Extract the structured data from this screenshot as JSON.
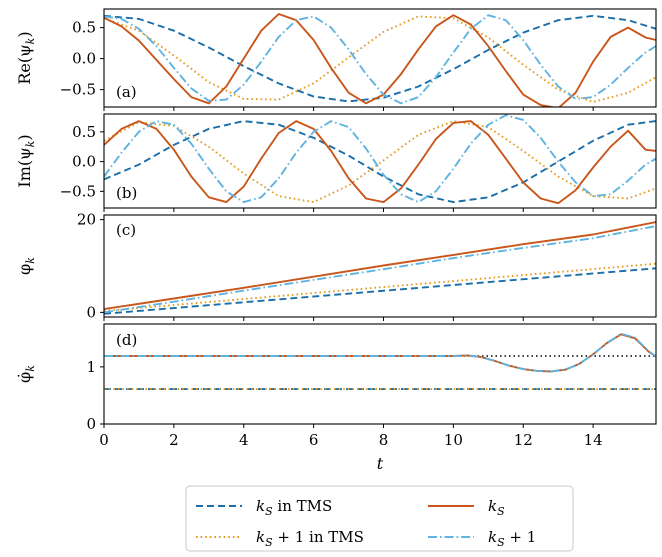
{
  "chart_data": [
    {
      "panel_label": "(a)",
      "type": "line",
      "ylabel": "Re(ψ_k)",
      "xlim": [
        0,
        15.8
      ],
      "ylim": [
        -0.78,
        0.8
      ],
      "yticks": [
        0.5,
        0.0,
        -0.5
      ],
      "ytick_labels": [
        "0.5",
        "0.0",
        "−0.5"
      ],
      "series": [
        {
          "key": "kS_tms",
          "x": [
            0,
            1,
            2,
            3,
            4,
            5,
            6,
            7,
            8,
            9,
            10,
            11,
            12,
            13,
            14,
            15,
            15.8
          ],
          "y": [
            0.69,
            0.64,
            0.45,
            0.18,
            -0.12,
            -0.4,
            -0.61,
            -0.69,
            -0.63,
            -0.45,
            -0.17,
            0.14,
            0.42,
            0.62,
            0.69,
            0.62,
            0.48
          ]
        },
        {
          "key": "kS1_tms",
          "x": [
            0,
            1,
            2,
            3,
            4,
            5,
            6,
            7,
            8,
            9,
            10,
            11,
            12,
            13,
            14,
            15,
            15.8
          ],
          "y": [
            0.65,
            0.45,
            0.05,
            -0.38,
            -0.65,
            -0.66,
            -0.4,
            0.02,
            0.43,
            0.68,
            0.65,
            0.34,
            -0.1,
            -0.5,
            -0.7,
            -0.55,
            -0.3
          ]
        },
        {
          "key": "kS",
          "x": [
            0,
            0.5,
            1,
            1.5,
            2,
            2.5,
            3,
            3.5,
            4,
            4.5,
            5,
            5.5,
            6,
            6.5,
            7,
            7.5,
            8,
            8.5,
            9,
            9.5,
            10,
            10.5,
            11,
            11.5,
            12,
            12.5,
            13,
            13.5,
            14,
            14.5,
            15,
            15.5,
            15.8
          ],
          "y": [
            0.66,
            0.52,
            0.29,
            -0.02,
            -0.33,
            -0.62,
            -0.72,
            -0.45,
            0.0,
            0.45,
            0.72,
            0.62,
            0.3,
            -0.15,
            -0.55,
            -0.72,
            -0.58,
            -0.25,
            0.15,
            0.52,
            0.7,
            0.55,
            0.2,
            -0.2,
            -0.58,
            -0.75,
            -0.8,
            -0.55,
            -0.05,
            0.35,
            0.5,
            0.34,
            0.3
          ]
        },
        {
          "key": "kS1",
          "x": [
            0,
            0.5,
            1,
            1.5,
            2,
            2.5,
            3,
            3.5,
            4,
            4.5,
            5,
            5.5,
            6,
            6.5,
            7,
            7.5,
            8,
            8.5,
            9,
            9.5,
            10,
            10.5,
            11,
            11.5,
            12,
            12.5,
            13,
            13.5,
            14,
            14.5,
            15,
            15.5,
            15.8
          ],
          "y": [
            0.68,
            0.64,
            0.48,
            0.2,
            -0.15,
            -0.48,
            -0.68,
            -0.66,
            -0.42,
            -0.05,
            0.35,
            0.62,
            0.68,
            0.5,
            0.15,
            -0.25,
            -0.58,
            -0.72,
            -0.62,
            -0.3,
            0.1,
            0.48,
            0.7,
            0.62,
            0.3,
            -0.1,
            -0.45,
            -0.65,
            -0.62,
            -0.42,
            -0.15,
            0.1,
            0.2
          ]
        }
      ]
    },
    {
      "panel_label": "(b)",
      "type": "line",
      "ylabel": "Im(ψ_k)",
      "xlim": [
        0,
        15.8
      ],
      "ylim": [
        -0.78,
        0.8
      ],
      "yticks": [
        0.5,
        0.0,
        -0.5
      ],
      "ytick_labels": [
        "0.5",
        "0.0",
        "−0.5"
      ],
      "series": [
        {
          "key": "kS_tms",
          "x": [
            0,
            1,
            2,
            3,
            4,
            5,
            6,
            7,
            8,
            9,
            10,
            11,
            12,
            13,
            14,
            15,
            15.8
          ],
          "y": [
            -0.3,
            -0.05,
            0.28,
            0.55,
            0.68,
            0.62,
            0.4,
            0.1,
            -0.25,
            -0.55,
            -0.68,
            -0.6,
            -0.35,
            0.0,
            0.35,
            0.62,
            0.68
          ]
        },
        {
          "key": "kS1_tms",
          "x": [
            0,
            1,
            2,
            3,
            4,
            5,
            6,
            7,
            8,
            9,
            10,
            11,
            12,
            13,
            14,
            15,
            15.8
          ],
          "y": [
            0.35,
            0.66,
            0.6,
            0.25,
            -0.2,
            -0.58,
            -0.68,
            -0.4,
            0.02,
            0.45,
            0.68,
            0.58,
            0.18,
            -0.25,
            -0.58,
            -0.62,
            -0.45
          ]
        },
        {
          "key": "kS",
          "x": [
            0,
            0.5,
            1,
            1.5,
            2,
            2.5,
            3,
            3.5,
            4,
            4.5,
            5,
            5.5,
            6,
            6.5,
            7,
            7.5,
            8,
            8.5,
            9,
            9.5,
            10,
            10.5,
            11,
            11.5,
            12,
            12.5,
            13,
            13.5,
            14,
            14.5,
            15,
            15.5,
            15.8
          ],
          "y": [
            0.28,
            0.55,
            0.68,
            0.55,
            0.2,
            -0.25,
            -0.6,
            -0.68,
            -0.42,
            0.05,
            0.48,
            0.68,
            0.55,
            0.18,
            -0.28,
            -0.62,
            -0.68,
            -0.45,
            -0.05,
            0.38,
            0.65,
            0.68,
            0.45,
            0.05,
            -0.35,
            -0.62,
            -0.7,
            -0.48,
            -0.1,
            0.25,
            0.52,
            0.2,
            0.18
          ]
        },
        {
          "key": "kS1",
          "x": [
            0,
            0.5,
            1,
            1.5,
            2,
            2.5,
            3,
            3.5,
            4,
            4.5,
            5,
            5.5,
            6,
            6.5,
            7,
            7.5,
            8,
            8.5,
            9,
            9.5,
            10,
            10.5,
            11,
            11.5,
            12,
            12.5,
            13,
            13.5,
            14,
            14.5,
            15,
            15.5,
            15.8
          ],
          "y": [
            -0.25,
            0.15,
            0.5,
            0.68,
            0.62,
            0.3,
            -0.12,
            -0.5,
            -0.68,
            -0.6,
            -0.28,
            0.15,
            0.5,
            0.68,
            0.58,
            0.22,
            -0.22,
            -0.55,
            -0.68,
            -0.5,
            -0.12,
            0.3,
            0.62,
            0.78,
            0.7,
            0.4,
            0.0,
            -0.35,
            -0.58,
            -0.55,
            -0.32,
            -0.05,
            0.05
          ]
        }
      ]
    },
    {
      "panel_label": "(c)",
      "type": "line",
      "ylabel": "φ_k",
      "xlim": [
        0,
        15.8
      ],
      "ylim": [
        -1,
        21
      ],
      "yticks": [
        20,
        0
      ],
      "ytick_labels": [
        "20",
        "0"
      ],
      "series": [
        {
          "key": "kS_tms",
          "x": [
            0,
            15.8
          ],
          "y": [
            -0.3,
            9.5
          ]
        },
        {
          "key": "kS1_tms",
          "x": [
            0,
            15.8
          ],
          "y": [
            0.3,
            10.5
          ]
        },
        {
          "key": "kS",
          "x": [
            0,
            2,
            4,
            6,
            8,
            10,
            12,
            14,
            15.8
          ],
          "y": [
            0.7,
            3.0,
            5.3,
            7.7,
            10.1,
            12.4,
            14.7,
            16.8,
            19.5
          ]
        },
        {
          "key": "kS1",
          "x": [
            0,
            2,
            4,
            6,
            8,
            10,
            12,
            14,
            15.8
          ],
          "y": [
            0.0,
            2.3,
            4.7,
            7.0,
            9.3,
            11.7,
            13.9,
            16.0,
            18.6
          ]
        }
      ]
    },
    {
      "panel_label": "(d)",
      "type": "line",
      "ylabel": "φ̇_k",
      "xlabel": "t",
      "xlim": [
        0,
        15.8
      ],
      "ylim": [
        0,
        1.75
      ],
      "yticks": [
        1,
        0
      ],
      "ytick_labels": [
        "1",
        "0"
      ],
      "xticks": [
        0,
        2,
        4,
        6,
        8,
        10,
        12,
        14
      ],
      "xtick_labels": [
        "0",
        "2",
        "4",
        "6",
        "8",
        "10",
        "12",
        "14"
      ],
      "series": [
        {
          "key": "kS_tms",
          "x": [
            0,
            15.8
          ],
          "y": [
            0.61,
            0.61
          ]
        },
        {
          "key": "kS1_tms",
          "x": [
            0,
            15.8
          ],
          "y": [
            0.61,
            0.61
          ]
        },
        {
          "key": "ref",
          "x": [
            0,
            15.8
          ],
          "y": [
            1.19,
            1.19
          ]
        },
        {
          "key": "kS",
          "x": [
            0,
            10,
            10.4,
            10.8,
            11.2,
            11.6,
            12,
            12.4,
            12.8,
            13.2,
            13.6,
            14,
            14.4,
            14.8,
            15.2,
            15.6,
            15.8
          ],
          "y": [
            1.19,
            1.19,
            1.2,
            1.17,
            1.1,
            1.02,
            0.96,
            0.93,
            0.92,
            0.95,
            1.05,
            1.22,
            1.42,
            1.57,
            1.5,
            1.26,
            1.18
          ]
        },
        {
          "key": "kS1",
          "x": [
            0,
            10,
            10.4,
            10.8,
            11.2,
            11.6,
            12,
            12.4,
            12.8,
            13.2,
            13.6,
            14,
            14.4,
            14.8,
            15.2,
            15.6,
            15.8
          ],
          "y": [
            1.19,
            1.19,
            1.2,
            1.17,
            1.1,
            1.02,
            0.96,
            0.93,
            0.92,
            0.95,
            1.05,
            1.22,
            1.42,
            1.58,
            1.51,
            1.27,
            1.18
          ]
        }
      ]
    }
  ],
  "series_styles": {
    "kS_tms": {
      "color": "#1a6fa8",
      "dash": "7,4"
    },
    "kS1_tms": {
      "color": "#e39a1f",
      "dash": "1.6,3"
    },
    "kS": {
      "color": "#c9561a",
      "dash": ""
    },
    "kS1": {
      "color": "#5fb3e0",
      "dash": "9,3,1.6,3"
    },
    "ref": {
      "color": "#000000",
      "dash": "1.5,3"
    }
  },
  "legend": {
    "placement": "bottom-center",
    "entries": [
      {
        "key": "kS_tms",
        "label": "k_S in TMS"
      },
      {
        "key": "kS",
        "label": "k_S"
      },
      {
        "key": "kS1_tms",
        "label": "k_S + 1 in TMS"
      },
      {
        "key": "kS1",
        "label": "k_S + 1"
      }
    ]
  }
}
